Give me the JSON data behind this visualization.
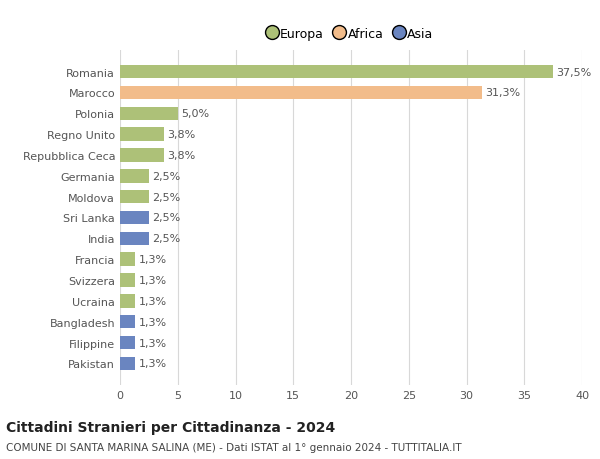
{
  "countries": [
    "Romania",
    "Marocco",
    "Polonia",
    "Regno Unito",
    "Repubblica Ceca",
    "Germania",
    "Moldova",
    "Sri Lanka",
    "India",
    "Francia",
    "Svizzera",
    "Ucraina",
    "Bangladesh",
    "Filippine",
    "Pakistan"
  ],
  "values": [
    37.5,
    31.3,
    5.0,
    3.8,
    3.8,
    2.5,
    2.5,
    2.5,
    2.5,
    1.3,
    1.3,
    1.3,
    1.3,
    1.3,
    1.3
  ],
  "continents": [
    "Europa",
    "Africa",
    "Europa",
    "Europa",
    "Europa",
    "Europa",
    "Europa",
    "Asia",
    "Asia",
    "Europa",
    "Europa",
    "Europa",
    "Asia",
    "Asia",
    "Asia"
  ],
  "colors": {
    "Europa": "#adc178",
    "Africa": "#f2bc8a",
    "Asia": "#6a85c0"
  },
  "title": "Cittadini Stranieri per Cittadinanza - 2024",
  "subtitle": "COMUNE DI SANTA MARINA SALINA (ME) - Dati ISTAT al 1° gennaio 2024 - TUTTITALIA.IT",
  "xlim": [
    0,
    40
  ],
  "xticks": [
    0,
    5,
    10,
    15,
    20,
    25,
    30,
    35,
    40
  ],
  "background_color": "#ffffff",
  "grid_color": "#d8d8d8",
  "bar_height": 0.65,
  "label_fontsize": 8,
  "tick_fontsize": 8,
  "title_fontsize": 10,
  "subtitle_fontsize": 7.5
}
